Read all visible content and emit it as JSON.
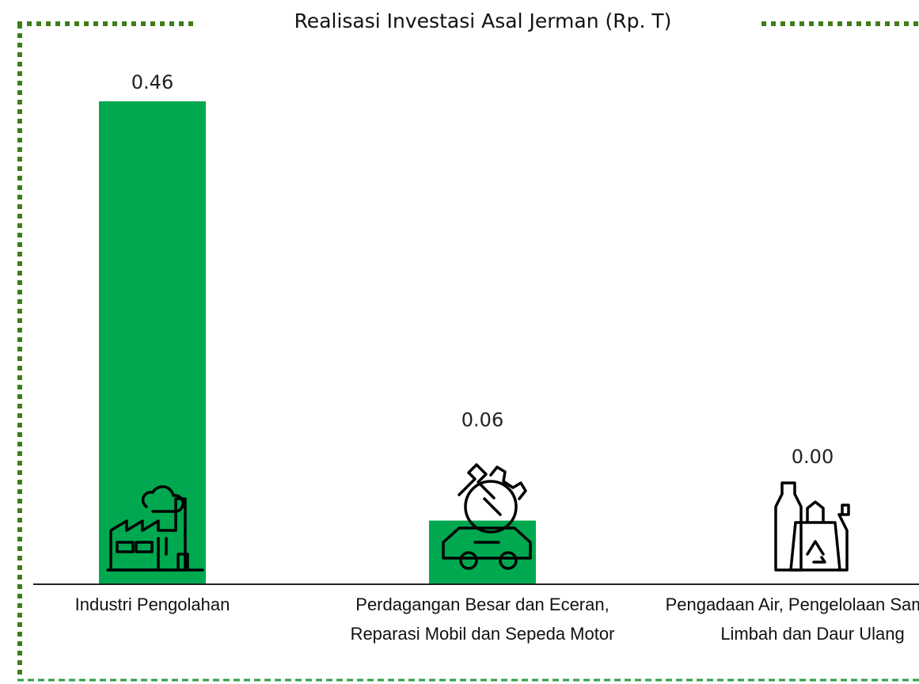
{
  "chart_data": {
    "type": "bar",
    "title": "Realisasi Investasi Asal Jerman (Rp. T)",
    "categories": [
      "Industri Pengolahan",
      "Perdagangan Besar dan Eceran, Reparasi Mobil dan Sepeda Motor",
      "Pengadaan Air, Pengelolaan Sampah, Limbah dan Daur Ulang"
    ],
    "values": [
      0.46,
      0.06,
      0
    ],
    "value_labels": [
      "0.46",
      "0.06",
      "0.00"
    ],
    "color": "#00a84f",
    "ylim": [
      0,
      0.46
    ]
  }
}
